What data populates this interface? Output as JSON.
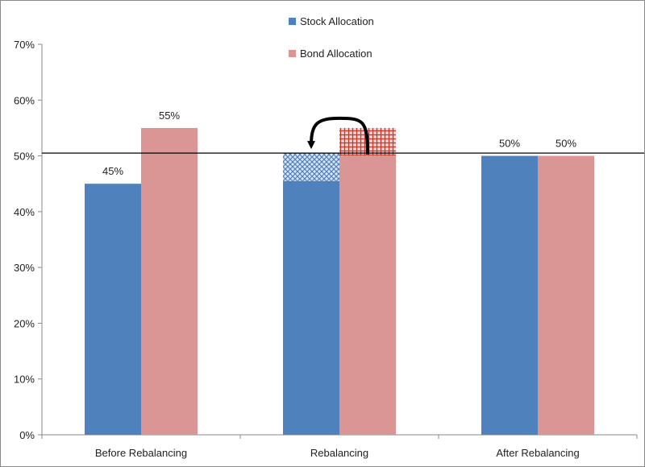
{
  "chart_data": {
    "type": "bar",
    "categories": [
      "Before Rebalancing",
      "Rebalancing",
      "After Rebalancing"
    ],
    "series": [
      {
        "name": "Stock Allocation",
        "color": "#4f81bd",
        "values": [
          45,
          45.5,
          50
        ]
      },
      {
        "name": "Bond Allocation",
        "color": "#d99694",
        "values": [
          55,
          50,
          50
        ]
      }
    ],
    "data_labels": [
      "45%",
      "55%",
      "",
      "",
      "50%",
      "50%"
    ],
    "rebalancing_transfer": {
      "from": "Bond Allocation",
      "to": "Stock Allocation",
      "bond_excess_range": [
        50,
        55
      ],
      "stock_gap_range": [
        45.5,
        50.5
      ],
      "pattern_colors": {
        "stock_gap": "#4f81bd",
        "bond_excess": "#c0392b"
      },
      "arrow": "curved-arrow-icon"
    },
    "target_line": 50.5,
    "y_ticks": [
      "0%",
      "10%",
      "20%",
      "30%",
      "40%",
      "50%",
      "60%",
      "70%"
    ],
    "ylim": [
      0,
      70
    ],
    "grid": false,
    "legend_position": "top-center"
  }
}
